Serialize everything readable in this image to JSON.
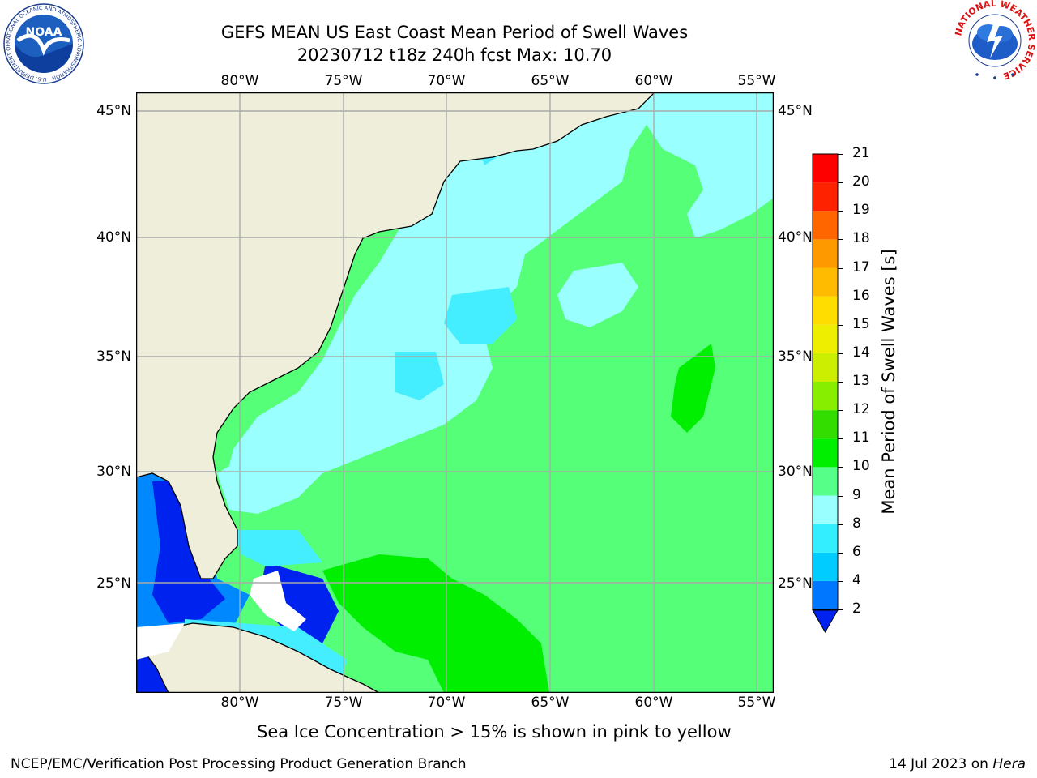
{
  "title": {
    "line1": "GEFS MEAN US East Coast Mean Period of Swell Waves",
    "line2": "20230712 t18z 240h fcst   Max: 10.70"
  },
  "lon_labels": [
    "80°W",
    "75°W",
    "70°W",
    "65°W",
    "60°W",
    "55°W"
  ],
  "lat_labels": [
    "45°N",
    "40°N",
    "35°N",
    "30°N",
    "25°N"
  ],
  "colorbar": {
    "label": "Mean Period of Swell Waves [s]",
    "ticks": [
      "2",
      "4",
      "6",
      "8",
      "9",
      "10",
      "11",
      "12",
      "13",
      "14",
      "15",
      "16",
      "17",
      "18",
      "19",
      "20",
      "21"
    ],
    "colors": [
      "#0022ee",
      "#0077ff",
      "#00ccff",
      "#33eeff",
      "#99ffff",
      "#55ff88",
      "#00ee00",
      "#33dd00",
      "#88ee00",
      "#ccee00",
      "#eeee00",
      "#ffdd00",
      "#ffbb00",
      "#ff9900",
      "#ff6600",
      "#ff2200",
      "#ff0000"
    ]
  },
  "map_colors": {
    "land": "#efeedb",
    "period_2_4": "#0022ee",
    "period_4_6": "#0088ff",
    "period_6_8": "#44eeff",
    "period_8_9": "#99ffff",
    "period_9_10": "#55ff77",
    "period_10_11": "#00ee00"
  },
  "subtitle": "Sea Ice Concentration > 15% is shown in pink to yellow",
  "footer": {
    "left": "NCEP/EMC/Verification Post Processing Product Generation Branch",
    "right_prefix": "14 Jul 2023 on ",
    "right_host": "Hera"
  },
  "logos": {
    "noaa": "NOAA",
    "noaa_ring": "NATIONAL OCEANIC AND ATMOSPHERIC ADMINISTRATION · U.S. DEPARTMENT OF COMMERCE ·",
    "nws_ring": "NATIONAL WEATHER SERVICE"
  }
}
